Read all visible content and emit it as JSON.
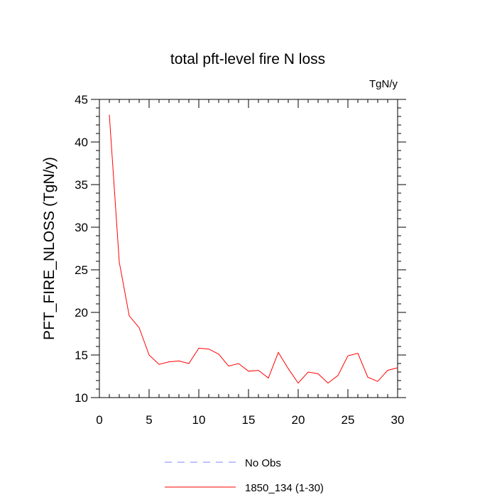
{
  "chart_data": {
    "type": "line",
    "title": "total pft-level fire N loss",
    "units_label": "TgN/y",
    "ylabel": "PFT_FIRE_NLOSS  (TgN/y)",
    "xlabel": "",
    "xlim": [
      0,
      30
    ],
    "ylim": [
      10,
      45
    ],
    "x_ticks": [
      0,
      5,
      10,
      15,
      20,
      25,
      30
    ],
    "y_ticks": [
      10,
      15,
      20,
      25,
      30,
      35,
      40,
      45
    ],
    "grid": false,
    "legend_placement": "bottom-center",
    "series": [
      {
        "name": "1850_134 (1-30)",
        "color": "#ff0000",
        "dash": "solid",
        "x": [
          1,
          2,
          3,
          4,
          5,
          6,
          7,
          8,
          9,
          10,
          11,
          12,
          13,
          14,
          15,
          16,
          17,
          18,
          19,
          20,
          21,
          22,
          23,
          24,
          25,
          26,
          27,
          28,
          29,
          30
        ],
        "values": [
          43.2,
          25.9,
          19.6,
          18.2,
          15.0,
          13.9,
          14.2,
          14.3,
          14.0,
          15.8,
          15.7,
          15.1,
          13.7,
          14.0,
          13.1,
          13.2,
          12.3,
          15.3,
          13.4,
          11.7,
          13.0,
          12.8,
          11.7,
          12.6,
          14.9,
          15.2,
          12.4,
          11.9,
          13.2,
          13.5
        ]
      }
    ],
    "legend": [
      {
        "label": "No Obs",
        "color": "#8080ff",
        "dash": "dashed"
      },
      {
        "label": "1850_134 (1-30)",
        "color": "#ff0000",
        "dash": "solid"
      }
    ]
  }
}
